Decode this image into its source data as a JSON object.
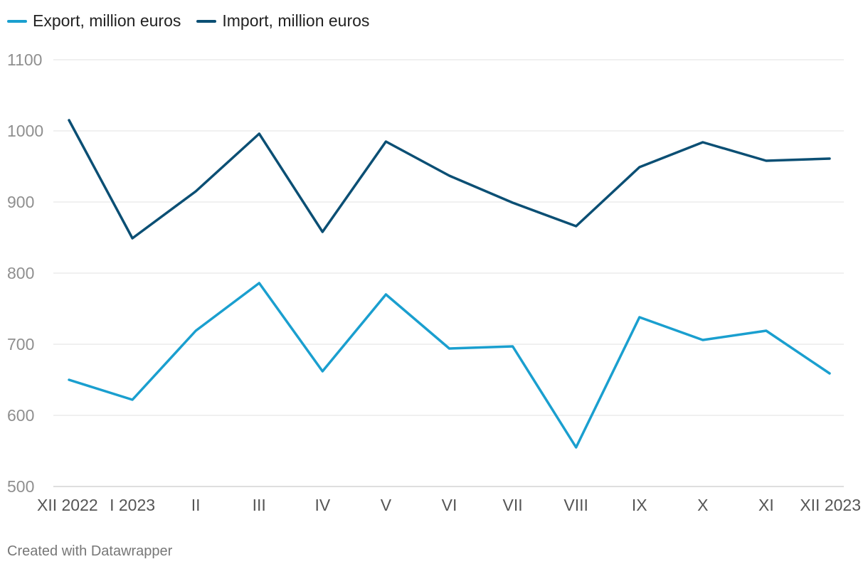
{
  "chart_data": {
    "type": "line",
    "categories": [
      "XII 2022",
      "I 2023",
      "II",
      "III",
      "IV",
      "V",
      "VI",
      "VII",
      "VIII",
      "IX",
      "X",
      "XI",
      "XII 2023"
    ],
    "series": [
      {
        "name": "Export, million euros",
        "color": "#1a9fcf",
        "values": [
          650,
          622,
          719,
          786,
          662,
          770,
          694,
          697,
          555,
          738,
          706,
          719,
          659
        ]
      },
      {
        "name": "Import, million euros",
        "color": "#0b4f74",
        "values": [
          1015,
          849,
          915,
          996,
          858,
          985,
          937,
          899,
          866,
          949,
          984,
          958,
          961
        ]
      }
    ],
    "yticks": [
      500,
      600,
      700,
      800,
      900,
      1000,
      1100
    ],
    "ylim": [
      500,
      1100
    ],
    "grid": true,
    "legend_position": "top-left"
  },
  "footer": {
    "credit": "Created with Datawrapper"
  }
}
